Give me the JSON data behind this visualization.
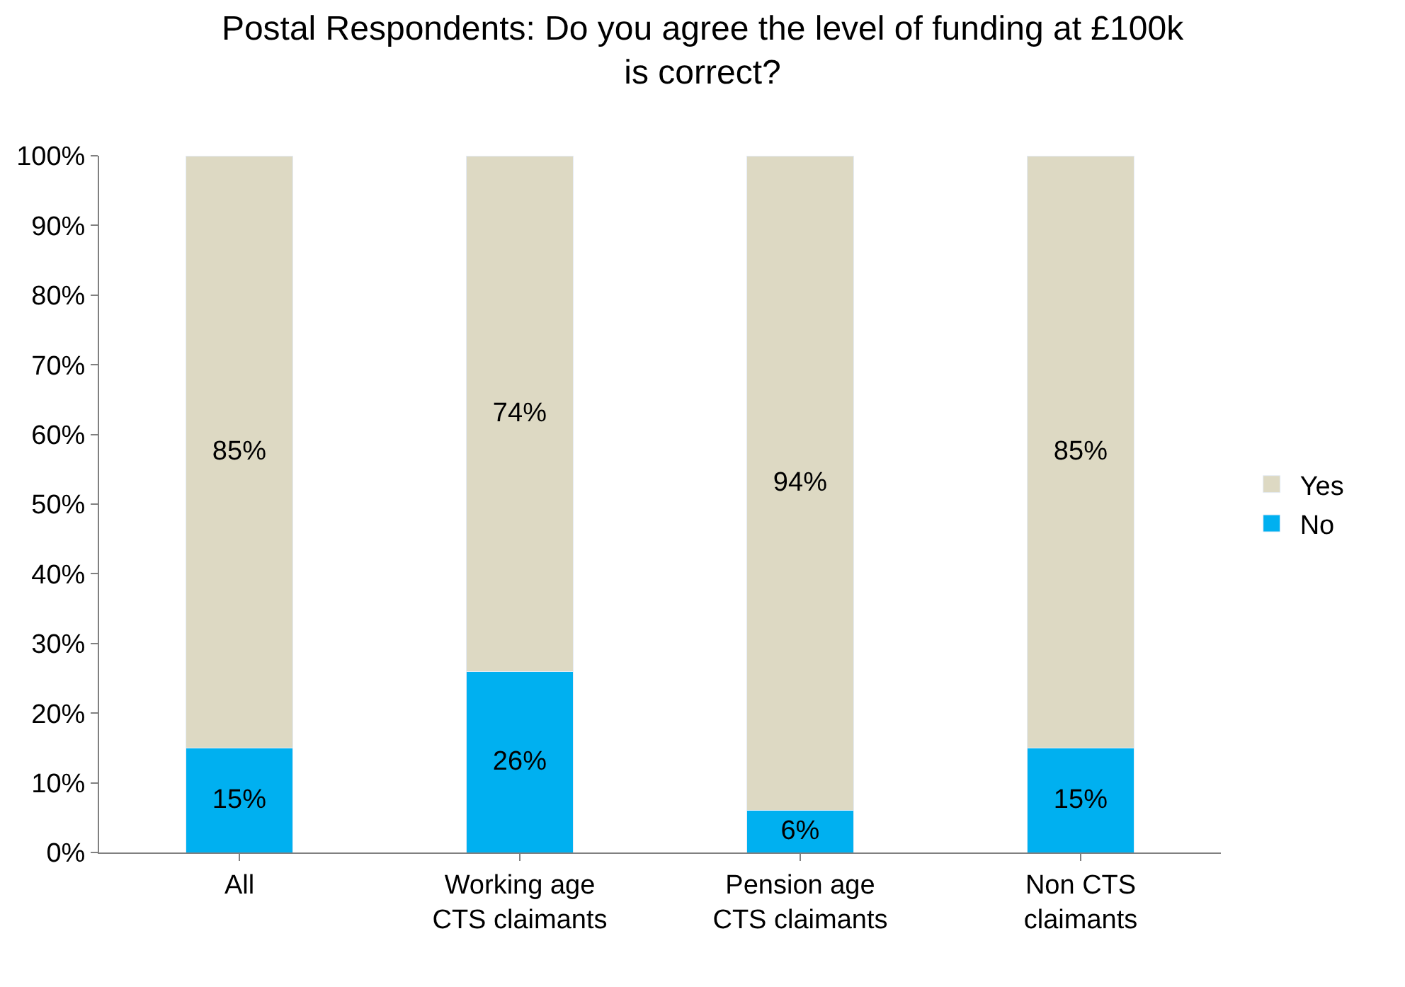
{
  "chart_data": {
    "type": "bar",
    "title": "Postal Respondents: Do you agree the level of funding at £100k is correct?",
    "categories": [
      "All",
      "Working age\nCTS claimants",
      "Pension age\nCTS claimants",
      "Non CTS\nclaimants"
    ],
    "stacked": true,
    "series": [
      {
        "name": "No",
        "color": "#00b0f0",
        "values": [
          15,
          26,
          6,
          15
        ],
        "value_labels": [
          "15%",
          "26%",
          "6%",
          "15%"
        ]
      },
      {
        "name": "Yes",
        "color": "#ddd9c3",
        "values": [
          85,
          74,
          94,
          85
        ],
        "value_labels": [
          "85%",
          "74%",
          "94%",
          "85%"
        ]
      }
    ],
    "ylim": [
      0,
      100
    ],
    "yticks": [
      {
        "value": 0,
        "label": "0%"
      },
      {
        "value": 10,
        "label": "10%"
      },
      {
        "value": 20,
        "label": "20%"
      },
      {
        "value": 30,
        "label": "30%"
      },
      {
        "value": 40,
        "label": "40%"
      },
      {
        "value": 50,
        "label": "50%"
      },
      {
        "value": 60,
        "label": "60%"
      },
      {
        "value": 70,
        "label": "70%"
      },
      {
        "value": 80,
        "label": "80%"
      },
      {
        "value": 90,
        "label": "90%"
      },
      {
        "value": 100,
        "label": "100%"
      }
    ],
    "grid": false,
    "legend": "right"
  }
}
